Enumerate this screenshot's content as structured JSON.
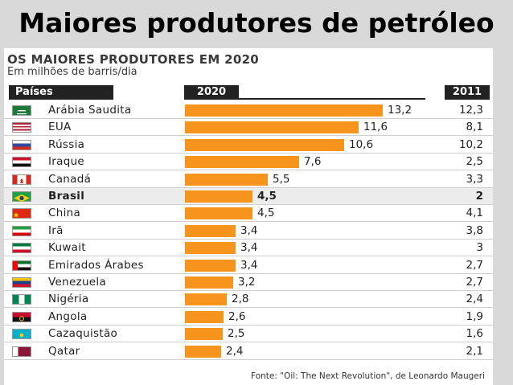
{
  "slide": {
    "title": "Maiores produtores de petróleo"
  },
  "chart_data": {
    "type": "bar",
    "title": "OS MAIORES PRODUTORES EM 2020",
    "subtitle": "Em milhões de barris/dia",
    "column_headers": {
      "countries": "Países",
      "year_a": "2020",
      "year_b": "2011"
    },
    "categories": [
      "Arábia Saudita",
      "EUA",
      "Rússia",
      "Iraque",
      "Canadá",
      "Brasil",
      "China",
      "Irã",
      "Kuwait",
      "Emirados Árabes",
      "Venezuela",
      "Nigéria",
      "Angola",
      "Cazaquistão",
      "Qatar"
    ],
    "series": [
      {
        "name": "2020",
        "values": [
          13.2,
          11.6,
          10.6,
          7.6,
          5.5,
          4.5,
          4.5,
          3.4,
          3.4,
          3.4,
          3.2,
          2.8,
          2.6,
          2.5,
          2.4
        ],
        "labels": [
          "13,2",
          "11,6",
          "10,6",
          "7,6",
          "5,5",
          "4,5",
          "4,5",
          "3,4",
          "3,4",
          "3,4",
          "3,2",
          "2,8",
          "2,6",
          "2,5",
          "2,4"
        ]
      },
      {
        "name": "2011",
        "values": [
          12.3,
          8.1,
          10.2,
          2.5,
          3.3,
          2,
          4.1,
          3.8,
          3,
          2.7,
          2.7,
          2.4,
          1.9,
          1.6,
          2.1
        ],
        "labels": [
          "12,3",
          "8,1",
          "10,2",
          "2,5",
          "3,3",
          "2",
          "4,1",
          "3,8",
          "3",
          "2,7",
          "2,7",
          "2,4",
          "1,9",
          "1,6",
          "2,1"
        ]
      }
    ],
    "highlighted_category": "Brasil",
    "bar_color": "#f7941d",
    "source": "Fonte: \"Oil: The Next Revolution\", de Leonardo Maugeri"
  }
}
